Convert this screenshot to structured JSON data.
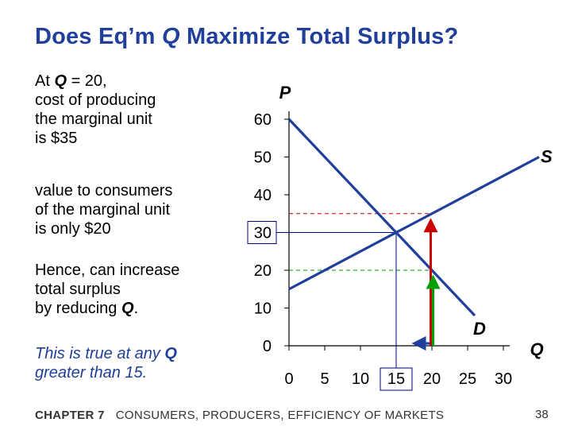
{
  "slide": {
    "title_pre": "Does Eq’m ",
    "title_q": "Q",
    "title_post": "  Maximize Total Surplus?",
    "footer_chapter": "CHAPTER 7",
    "footer_title": "CONSUMERS, PRODUCERS, EFFICIENCY OF MARKETS",
    "page_number": "38"
  },
  "text": {
    "p1_a": "At ",
    "p1_q": "Q",
    "p1_b": " = 20,",
    "p1_l2": "cost of producing",
    "p1_l3": "the marginal unit",
    "p1_l4": "is $35",
    "p2_l1": "value to consumers",
    "p2_l2": "of the marginal unit",
    "p2_l3": "is only $20",
    "p3_l1": "Hence, can increase",
    "p3_l2": "total surplus",
    "p3_l3a": "by reducing ",
    "p3_q": "Q",
    "p3_l3b": ".",
    "p4_l1a": "This is true at any ",
    "p4_q": "Q",
    "p4_l2": "greater than 15."
  },
  "chart_data": {
    "type": "line",
    "xlabel": "Q",
    "ylabel": "P",
    "xlim": [
      0,
      30
    ],
    "ylim": [
      0,
      60
    ],
    "x_ticks": [
      0,
      5,
      10,
      15,
      20,
      25,
      30
    ],
    "y_ticks": [
      0,
      10,
      20,
      30,
      40,
      50,
      60
    ],
    "series": [
      {
        "name": "S",
        "points": [
          [
            0,
            15
          ],
          [
            35,
            50
          ]
        ],
        "color": "#1f3f9a"
      },
      {
        "name": "D",
        "points": [
          [
            0,
            60
          ],
          [
            26,
            8
          ]
        ],
        "color": "#1f3f9a"
      }
    ],
    "equilibrium": {
      "q": 15,
      "p": 30
    },
    "boxed_x_tick": 15,
    "boxed_y_tick": 30,
    "marginal_q": 20,
    "marginal_cost": 35,
    "marginal_value": 20,
    "colors": {
      "cost": "#cc0000",
      "value": "#00a000",
      "arrow_q": "#1f3f9a",
      "guide": "#000080",
      "curves": "#1f3f9a"
    }
  }
}
